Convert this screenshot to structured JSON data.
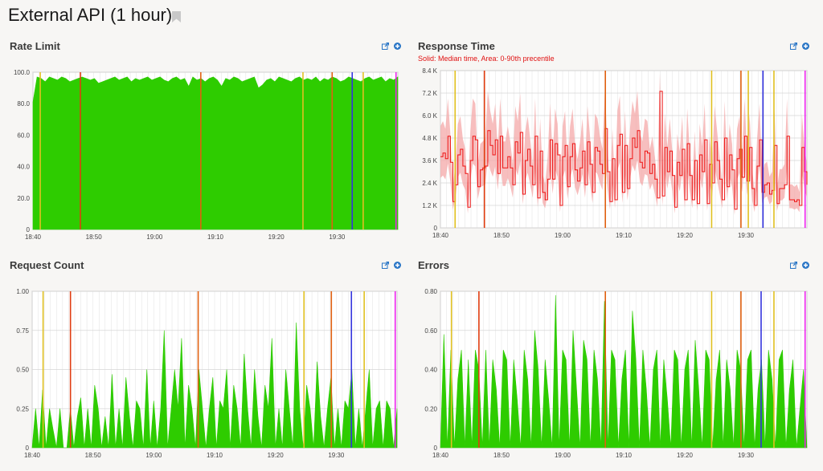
{
  "page": {
    "title": "External API (1 hour)"
  },
  "colors": {
    "green": "#2ecc00",
    "red": "#ee1111",
    "redFill": "#f4a8a8",
    "grid": "#e0e0e0",
    "link": "#2a76c6"
  },
  "panels": {
    "rate_limit": {
      "title": "Rate Limit",
      "subtitle": ""
    },
    "response_time": {
      "title": "Response Time",
      "subtitle": "Solid: Median time, Area: 0-90th precentile"
    },
    "request_count": {
      "title": "Request Count",
      "subtitle": ""
    },
    "errors": {
      "title": "Errors",
      "subtitle": ""
    }
  },
  "chart_data": [
    {
      "id": "rate_limit",
      "type": "area",
      "title": "Rate Limit",
      "x_ticks": [
        "18:40",
        "18:50",
        "19:00",
        "19:10",
        "19:20",
        "19:30"
      ],
      "y_ticks": [
        "0",
        "20.0",
        "40.0",
        "60.0",
        "80.0",
        "100.0"
      ],
      "ylim": [
        0,
        100
      ],
      "series": [
        {
          "values": [
            81,
            97,
            96,
            94,
            97,
            96,
            95,
            97,
            96,
            94,
            95,
            96,
            97,
            96,
            95,
            96,
            93,
            94,
            95,
            96,
            97,
            95,
            96,
            97,
            94,
            96,
            95,
            96,
            97,
            95,
            96,
            97,
            95,
            94,
            96,
            97,
            95,
            96,
            91,
            97,
            95,
            96,
            94,
            96,
            97,
            95,
            91,
            96,
            95,
            97,
            96,
            94,
            95,
            96,
            97,
            90,
            92,
            95,
            96,
            94,
            97,
            96,
            95,
            94,
            96,
            97,
            95,
            96,
            95,
            97,
            94,
            96,
            95,
            97,
            96,
            94,
            95,
            97,
            96,
            95,
            94,
            96,
            97,
            95,
            96,
            97,
            94,
            96,
            95,
            97
          ]
        }
      ],
      "markers": [
        {
          "x": 0.02,
          "color": "#e0c020"
        },
        {
          "x": 0.13,
          "color": "#e03c10"
        },
        {
          "x": 0.46,
          "color": "#e06010"
        },
        {
          "x": 0.74,
          "color": "#e0c020"
        },
        {
          "x": 0.82,
          "color": "#e06010"
        },
        {
          "x": 0.875,
          "color": "#3333dd"
        },
        {
          "x": 0.905,
          "color": "#e0c020"
        },
        {
          "x": 0.995,
          "color": "#ee22ee"
        }
      ]
    },
    {
      "id": "response_time",
      "type": "line",
      "title": "Response Time",
      "x_ticks": [
        "18:40",
        "18:50",
        "19:00",
        "19:10",
        "19:20",
        "19:30"
      ],
      "y_ticks": [
        "0",
        "1.2 K",
        "2.4 K",
        "3.6 K",
        "4.8 K",
        "6.0 K",
        "7.2 K",
        "8.4 K"
      ],
      "ylim": [
        0,
        8400
      ],
      "series": [
        {
          "name": "Median time",
          "values": [
            3800,
            4000,
            3700,
            4900,
            3500,
            1400,
            2300,
            3900,
            4200,
            3300,
            2900,
            1100,
            3600,
            4900,
            4700,
            2200,
            3100,
            3200,
            3300,
            5200,
            4400,
            3900,
            4700,
            2900,
            4900,
            3200,
            3200,
            3800,
            3200,
            2300,
            4600,
            4000,
            5100,
            1800,
            3600,
            4200,
            3300,
            2300,
            4900,
            1600,
            4100,
            1900,
            1500,
            2600,
            4700,
            2600,
            4500,
            3900,
            1200,
            3800,
            4400,
            2200,
            3800,
            4500,
            3100,
            2500,
            3200,
            4100,
            2300,
            4600,
            3400,
            1900,
            4300,
            4100,
            3400,
            2900,
            5300,
            3000,
            1400,
            3700,
            1500,
            4400,
            5000,
            1900,
            4400,
            2100,
            3700,
            4800,
            4300,
            5200,
            3500,
            3200,
            4100,
            4000,
            2900,
            3400,
            2600,
            1600,
            7300,
            1700,
            4300,
            3000,
            4100,
            2800,
            1100,
            3500,
            2800,
            4200,
            1500,
            4500,
            2800,
            1500,
            3600,
            1300,
            3900,
            3000,
            4700,
            1300,
            3400,
            2400,
            4600,
            3600,
            2600,
            1500,
            4800,
            2200,
            3900,
            3100,
            1000,
            3700,
            4200,
            2700,
            4900,
            2500,
            4300,
            2100,
            1200,
            3300,
            4700,
            1900,
            2300,
            2400,
            1800,
            2000,
            4400,
            1300,
            2100,
            2100,
            2300,
            4900,
            1500,
            1500,
            1400,
            1500,
            1200,
            4300,
            3000,
            2300
          ]
        }
      ],
      "markers": [
        {
          "x": 0.04,
          "color": "#e0c020"
        },
        {
          "x": 0.12,
          "color": "#e03c10"
        },
        {
          "x": 0.45,
          "color": "#e06010"
        },
        {
          "x": 0.74,
          "color": "#e0c020"
        },
        {
          "x": 0.82,
          "color": "#e06010"
        },
        {
          "x": 0.84,
          "color": "#e0c020"
        },
        {
          "x": 0.88,
          "color": "#3333dd"
        },
        {
          "x": 0.91,
          "color": "#e0c020"
        },
        {
          "x": 0.995,
          "color": "#ee22ee"
        }
      ]
    },
    {
      "id": "request_count",
      "type": "area",
      "title": "Request Count",
      "x_ticks": [
        "18:40",
        "18:50",
        "19:00",
        "19:10",
        "19:20",
        "19:30"
      ],
      "y_ticks": [
        "0",
        "0.25",
        "0.50",
        "0.75",
        "1.00"
      ],
      "ylim": [
        0,
        1
      ],
      "series": [
        {
          "values": [
            0,
            0.25,
            0,
            0.37,
            0,
            0.25,
            0.12,
            0,
            0.25,
            0,
            0,
            0.25,
            0,
            0.2,
            0.32,
            0,
            0.25,
            0,
            0.4,
            0.25,
            0,
            0.2,
            0,
            0.47,
            0,
            0.25,
            0,
            0.45,
            0.2,
            0,
            0.3,
            0.25,
            0,
            0.5,
            0,
            0.3,
            0,
            0.25,
            0.75,
            0,
            0.25,
            0.5,
            0.25,
            0.7,
            0,
            0.4,
            0.25,
            0,
            0.5,
            0.25,
            0,
            0.25,
            0.45,
            0,
            0.3,
            0.25,
            0.5,
            0,
            0.4,
            0.25,
            0,
            0.6,
            0.25,
            0,
            0.5,
            0.2,
            0,
            0.4,
            0.25,
            0.7,
            0,
            0.25,
            0,
            0.5,
            0.25,
            0,
            0.8,
            0.25,
            0,
            0.4,
            0.25,
            0,
            0.55,
            0.2,
            0,
            0.25,
            0.45,
            0,
            0.25,
            0,
            0.3,
            0.25,
            0.5,
            0,
            0.25,
            0,
            0.25,
            0.5,
            0,
            0.25,
            0.3,
            0,
            0.3,
            0.25,
            0,
            0.25
          ]
        }
      ],
      "markers": [
        {
          "x": 0.03,
          "color": "#e0c020"
        },
        {
          "x": 0.105,
          "color": "#e03c10"
        },
        {
          "x": 0.455,
          "color": "#e06010"
        },
        {
          "x": 0.745,
          "color": "#e0c020"
        },
        {
          "x": 0.82,
          "color": "#e06010"
        },
        {
          "x": 0.875,
          "color": "#3333dd"
        },
        {
          "x": 0.91,
          "color": "#e0c020"
        },
        {
          "x": 0.995,
          "color": "#ee22ee"
        }
      ]
    },
    {
      "id": "errors",
      "type": "area",
      "title": "Errors",
      "x_ticks": [
        "18:40",
        "18:50",
        "19:00",
        "19:10",
        "19:20",
        "19:30"
      ],
      "y_ticks": [
        "0",
        "0.20",
        "0.40",
        "0.60",
        "0.80"
      ],
      "ylim": [
        0,
        0.8
      ],
      "series": [
        {
          "values": [
            0,
            0.58,
            0,
            0.5,
            0,
            0.35,
            0.5,
            0,
            0.45,
            0,
            0.5,
            0.4,
            0,
            0.5,
            0,
            0.45,
            0.3,
            0,
            0.5,
            0.45,
            0,
            0.45,
            0.25,
            0,
            0.5,
            0.35,
            0,
            0.6,
            0.4,
            0,
            0.45,
            0.25,
            0,
            0.78,
            0,
            0.5,
            0.45,
            0,
            0.6,
            0.3,
            0,
            0.55,
            0.45,
            0,
            0.5,
            0.35,
            0,
            0.75,
            0,
            0.5,
            0.45,
            0,
            0.35,
            0.5,
            0,
            0.7,
            0.45,
            0,
            0.5,
            0.3,
            0,
            0.4,
            0.5,
            0,
            0.45,
            0.25,
            0,
            0.5,
            0.45,
            0,
            0.4,
            0.5,
            0,
            0.55,
            0.3,
            0,
            0.5,
            0.45,
            0,
            0.35,
            0.5,
            0,
            0.45,
            0.3,
            0,
            0.5,
            0.4,
            0,
            0.45,
            0.5,
            0,
            0.3,
            0.45,
            0,
            0.5,
            0.35,
            0,
            0.45,
            0.5,
            0,
            0.3,
            0.45,
            0,
            0.2,
            0.4,
            0
          ]
        }
      ],
      "markers": [
        {
          "x": 0.03,
          "color": "#e0c020"
        },
        {
          "x": 0.105,
          "color": "#e03c10"
        },
        {
          "x": 0.45,
          "color": "#e06010"
        },
        {
          "x": 0.74,
          "color": "#e0c020"
        },
        {
          "x": 0.82,
          "color": "#e06010"
        },
        {
          "x": 0.875,
          "color": "#3333dd"
        },
        {
          "x": 0.91,
          "color": "#e0c020"
        },
        {
          "x": 0.995,
          "color": "#ee22ee"
        }
      ]
    }
  ]
}
